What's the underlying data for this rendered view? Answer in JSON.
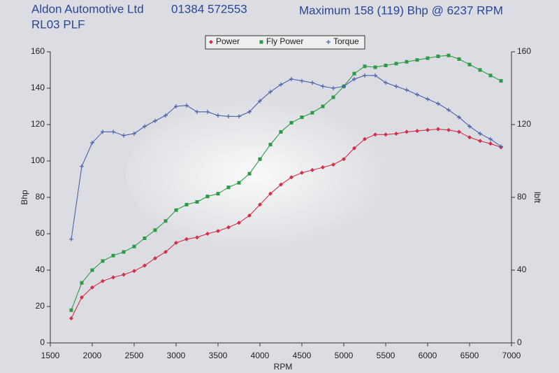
{
  "chart_data": {
    "type": "line",
    "title": "Maximum 158 (119) Bhp @ 6237 RPM",
    "annotations": [
      "Aldon Automotive Ltd",
      "01384 572553",
      "RL03 PLF"
    ],
    "x_label": "RPM",
    "y_label": "Bhp",
    "y2_label": "lbft",
    "x": [
      1750,
      1875,
      2000,
      2125,
      2250,
      2375,
      2500,
      2625,
      2750,
      2875,
      3000,
      3125,
      3250,
      3375,
      3500,
      3625,
      3750,
      3875,
      4000,
      4125,
      4250,
      4375,
      4500,
      4625,
      4750,
      4875,
      5000,
      5125,
      5250,
      5375,
      5500,
      5625,
      5750,
      5875,
      6000,
      6125,
      6250,
      6375,
      6500,
      6625,
      6750,
      6875
    ],
    "series": [
      {
        "name": "Power",
        "color": "#d0304a",
        "marker": "diamond",
        "values": [
          13.5,
          25,
          30.5,
          34,
          36,
          37.5,
          39.5,
          42.5,
          46.5,
          50,
          55,
          57,
          58,
          60,
          61.5,
          63.5,
          66,
          70,
          76,
          82,
          87,
          91,
          93.5,
          95,
          96.5,
          98,
          101,
          107,
          112,
          114.5,
          114.5,
          115,
          116,
          116.5,
          117,
          117.5,
          117,
          116,
          113,
          111,
          109.5,
          107.5
        ]
      },
      {
        "name": "Fly Power",
        "color": "#2e9a48",
        "marker": "square",
        "values": [
          18,
          33,
          40,
          45,
          48,
          50,
          53,
          57.5,
          62,
          67,
          73,
          76,
          77.5,
          80.5,
          82,
          85.5,
          88,
          93,
          101,
          109,
          116,
          121,
          124,
          126.5,
          130,
          135,
          141,
          148,
          152,
          151.5,
          152.5,
          153.5,
          154.5,
          155.5,
          156.5,
          157.5,
          158,
          156,
          153,
          150,
          147,
          144
        ]
      },
      {
        "name": "Torque",
        "color": "#4a62a8",
        "marker": "plus",
        "axis": "y2",
        "values": [
          57,
          97,
          110,
          116,
          116,
          114,
          115,
          119,
          122,
          125,
          130,
          130.5,
          127,
          127,
          125,
          124.5,
          124.5,
          127,
          133,
          138,
          142,
          145,
          144,
          143,
          141,
          140,
          141,
          145,
          147,
          147,
          143,
          141,
          139,
          136.5,
          134,
          131.5,
          128,
          124,
          119,
          115,
          112,
          108
        ]
      }
    ],
    "xlim": [
      1500,
      7000
    ],
    "xticks": [
      1500,
      2000,
      2500,
      3000,
      3500,
      4000,
      4500,
      5000,
      5500,
      6000,
      6500,
      7000
    ],
    "ylim": [
      0,
      160
    ],
    "yticks": [
      0,
      20,
      40,
      60,
      80,
      100,
      120,
      140,
      160
    ],
    "y2lim": [
      0,
      160
    ],
    "y2ticks": [
      0,
      40,
      80,
      120,
      160
    ],
    "legend_position": "top"
  }
}
